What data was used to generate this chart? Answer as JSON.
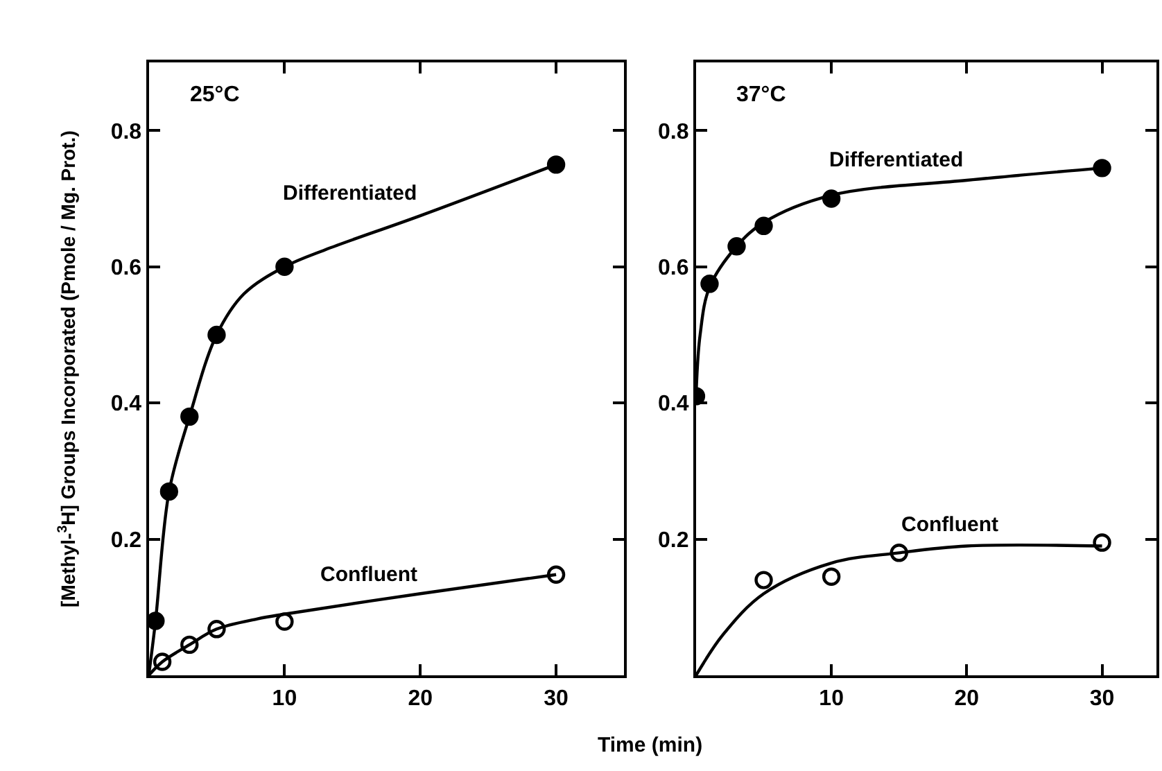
{
  "chart_data": [
    {
      "type": "scatter",
      "title": "25°C",
      "xlabel": "Time (min)",
      "ylabel": "[Methyl-$^{3}$H] Groups Incorporated (Pmole / Mg. Prot.)",
      "xlim": [
        0,
        35
      ],
      "ylim": [
        0,
        0.9
      ],
      "xticks": [
        10,
        20,
        30
      ],
      "yticks": [
        0.2,
        0.4,
        0.6,
        0.8
      ],
      "grid": false,
      "legend": false,
      "series": [
        {
          "name": "Differentiated",
          "color": "#000000",
          "marker": "circle",
          "x": [
            0.5,
            1.5,
            3,
            5,
            10,
            30
          ],
          "values": [
            0.08,
            0.27,
            0.38,
            0.5,
            0.6,
            0.75
          ]
        },
        {
          "type": "line",
          "color": "#000000",
          "marker": "none",
          "line_style": "solid",
          "x": [
            0,
            0.5,
            1.5,
            3,
            5,
            7,
            10,
            13,
            20,
            30
          ],
          "values": [
            0,
            0.08,
            0.27,
            0.38,
            0.5,
            0.56,
            0.6,
            0.625,
            0.675,
            0.75
          ]
        },
        {
          "name": "Confluent",
          "color": "#000000",
          "marker": "circle-open",
          "x": [
            1,
            3,
            5,
            10,
            30
          ],
          "values": [
            0.02,
            0.045,
            0.068,
            0.079,
            0.148
          ]
        },
        {
          "type": "line",
          "color": "#000000",
          "marker": "none",
          "line_style": "solid",
          "x": [
            0,
            1,
            3,
            5,
            8,
            10,
            20,
            30
          ],
          "values": [
            0,
            0.02,
            0.045,
            0.068,
            0.083,
            0.09,
            0.12,
            0.148
          ]
        }
      ]
    },
    {
      "type": "scatter",
      "title": "37°C",
      "xlim": [
        0,
        34
      ],
      "ylim": [
        0,
        0.9
      ],
      "xticks": [
        10,
        20,
        30
      ],
      "yticks": [
        0.2,
        0.4,
        0.6,
        0.8
      ],
      "grid": false,
      "legend": false,
      "series": [
        {
          "name": "Differentiated",
          "color": "#000000",
          "marker": "circle",
          "x": [
            0,
            1,
            3,
            5,
            10,
            30
          ],
          "values": [
            0.41,
            0.575,
            0.63,
            0.66,
            0.7,
            0.745
          ]
        },
        {
          "type": "line",
          "color": "#000000",
          "marker": "none",
          "line_style": "solid",
          "x": [
            0,
            0.3,
            1,
            3,
            5,
            10,
            20,
            30
          ],
          "values": [
            0.41,
            0.5,
            0.57,
            0.63,
            0.665,
            0.705,
            0.727,
            0.745
          ]
        },
        {
          "name": "Confluent",
          "color": "#000000",
          "marker": "circle-open",
          "x": [
            5,
            10,
            15,
            30
          ],
          "values": [
            0.14,
            0.145,
            0.18,
            0.195
          ]
        },
        {
          "type": "line",
          "color": "#000000",
          "marker": "none",
          "line_style": "solid",
          "x": [
            0,
            2,
            5,
            10,
            15,
            20,
            30
          ],
          "values": [
            0,
            0.06,
            0.12,
            0.165,
            0.18,
            0.19,
            0.19
          ]
        }
      ]
    }
  ]
}
